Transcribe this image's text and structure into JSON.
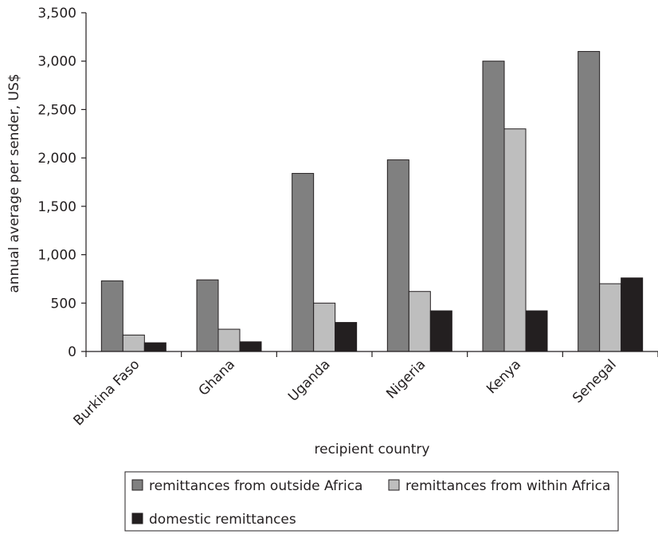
{
  "chart_data": {
    "type": "bar",
    "title": "",
    "xlabel": "recipient country",
    "ylabel": "annual average per sender, US$",
    "ylim": [
      0,
      3500
    ],
    "yticks": [
      0,
      500,
      1000,
      1500,
      2000,
      2500,
      3000,
      3500
    ],
    "ytick_labels": [
      "0",
      "500",
      "1,000",
      "1,500",
      "2,000",
      "2,500",
      "3,000",
      "3,500"
    ],
    "grid": false,
    "legend_position": "bottom",
    "categories": [
      "Burkina Faso",
      "Ghana",
      "Uganda",
      "Nigeria",
      "Kenya",
      "Senegal"
    ],
    "series": [
      {
        "name": "remittances from outside Africa",
        "color": "#808080",
        "values": [
          730,
          740,
          1840,
          1980,
          3000,
          3100
        ]
      },
      {
        "name": "remittances from within Africa",
        "color": "#bebebe",
        "values": [
          170,
          230,
          500,
          620,
          2300,
          700
        ]
      },
      {
        "name": "domestic remittances",
        "color": "#231f20",
        "values": [
          90,
          100,
          300,
          420,
          420,
          760
        ]
      }
    ]
  }
}
